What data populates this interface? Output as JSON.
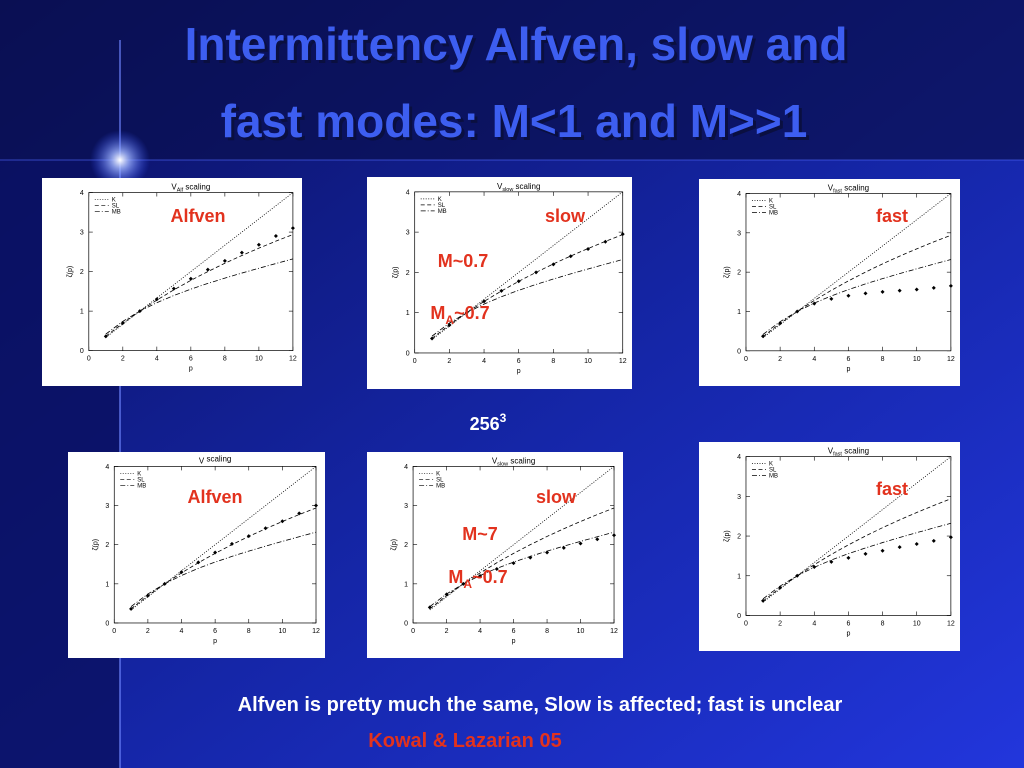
{
  "slide": {
    "title_line1": "Intermittency Alfven, slow and",
    "title_line2": "fast modes: M<1 and M>>1",
    "resolution": {
      "text": "256",
      "sup": "3"
    },
    "summary": "Alfven is pretty much the same, Slow is affected; fast is unclear",
    "citation": "Kowal & Lazarian 05"
  },
  "chart_data": [
    {
      "type": "line",
      "title": {
        "text": "V",
        "sub": "Alf",
        "rest": " scaling"
      },
      "xlabel": "p",
      "ylabel": "ζ(p)",
      "x": [
        1,
        2,
        3,
        4,
        5,
        6,
        7,
        8,
        9,
        10,
        11,
        12
      ],
      "xlim": [
        0,
        12
      ],
      "ylim": [
        0,
        4
      ],
      "xticks": [
        0,
        2,
        4,
        6,
        8,
        10,
        12
      ],
      "yticks": [
        0,
        1,
        2,
        3,
        4
      ],
      "series": [
        {
          "name": "K",
          "color": "#000000",
          "dash": "dotted",
          "values": [
            0.333,
            0.667,
            1,
            1.333,
            1.667,
            2,
            2.333,
            2.667,
            3,
            3.333,
            3.667,
            4
          ]
        },
        {
          "name": "SL",
          "color": "#000000",
          "dash": "dashed",
          "values": [
            0.364,
            0.696,
            1,
            1.279,
            1.538,
            1.778,
            2.001,
            2.211,
            2.407,
            2.593,
            2.77,
            2.938
          ]
        },
        {
          "name": "MB",
          "color": "#000000",
          "dash": "dashdot",
          "values": [
            0.418,
            0.741,
            1,
            1.213,
            1.396,
            1.556,
            1.701,
            1.836,
            1.963,
            2.085,
            2.204,
            2.321
          ]
        }
      ],
      "points": {
        "color": "#000000",
        "values": [
          0.36,
          0.7,
          1.0,
          1.3,
          1.57,
          1.82,
          2.05,
          2.27,
          2.48,
          2.68,
          2.9,
          3.1
        ]
      },
      "annotations": [
        "Alfven"
      ]
    },
    {
      "type": "line",
      "title": {
        "text": "V",
        "sub": "slow",
        "rest": " scaling"
      },
      "xlabel": "p",
      "ylabel": "ζ(p)",
      "x": [
        1,
        2,
        3,
        4,
        5,
        6,
        7,
        8,
        9,
        10,
        11,
        12
      ],
      "xlim": [
        0,
        12
      ],
      "ylim": [
        0,
        4
      ],
      "xticks": [
        0,
        2,
        4,
        6,
        8,
        10,
        12
      ],
      "yticks": [
        0,
        1,
        2,
        3,
        4
      ],
      "series": [
        {
          "name": "K",
          "color": "#000000",
          "dash": "dotted",
          "values": [
            0.333,
            0.667,
            1,
            1.333,
            1.667,
            2,
            2.333,
            2.667,
            3,
            3.333,
            3.667,
            4
          ]
        },
        {
          "name": "SL",
          "color": "#000000",
          "dash": "dashed",
          "values": [
            0.364,
            0.696,
            1,
            1.279,
            1.538,
            1.778,
            2.001,
            2.211,
            2.407,
            2.593,
            2.77,
            2.938
          ]
        },
        {
          "name": "MB",
          "color": "#000000",
          "dash": "dashdot",
          "values": [
            0.418,
            0.741,
            1,
            1.213,
            1.396,
            1.556,
            1.701,
            1.836,
            1.963,
            2.085,
            2.204,
            2.321
          ]
        }
      ],
      "points": {
        "color": "#000000",
        "values": [
          0.36,
          0.69,
          1.0,
          1.28,
          1.54,
          1.78,
          2.0,
          2.2,
          2.4,
          2.58,
          2.76,
          2.95
        ]
      },
      "annotations": [
        "slow",
        "M~0.7",
        {
          "text": "M",
          "sub": "A",
          "rest": "~0.7"
        }
      ]
    },
    {
      "type": "line",
      "title": {
        "text": "V",
        "sub": "fast",
        "rest": " scaling"
      },
      "xlabel": "p",
      "ylabel": "ζ(p)",
      "x": [
        1,
        2,
        3,
        4,
        5,
        6,
        7,
        8,
        9,
        10,
        11,
        12
      ],
      "xlim": [
        0,
        12
      ],
      "ylim": [
        0,
        4
      ],
      "xticks": [
        0,
        2,
        4,
        6,
        8,
        10,
        12
      ],
      "yticks": [
        0,
        1,
        2,
        3,
        4
      ],
      "series": [
        {
          "name": "K",
          "color": "#000000",
          "dash": "dotted",
          "values": [
            0.333,
            0.667,
            1,
            1.333,
            1.667,
            2,
            2.333,
            2.667,
            3,
            3.333,
            3.667,
            4
          ]
        },
        {
          "name": "SL",
          "color": "#000000",
          "dash": "dashed",
          "values": [
            0.364,
            0.696,
            1,
            1.279,
            1.538,
            1.778,
            2.001,
            2.211,
            2.407,
            2.593,
            2.77,
            2.938
          ]
        },
        {
          "name": "MB",
          "color": "#000000",
          "dash": "dashdot",
          "values": [
            0.418,
            0.741,
            1,
            1.213,
            1.396,
            1.556,
            1.701,
            1.836,
            1.963,
            2.085,
            2.204,
            2.321
          ]
        }
      ],
      "points": {
        "color": "#000000",
        "values": [
          0.37,
          0.7,
          1.0,
          1.2,
          1.32,
          1.4,
          1.46,
          1.5,
          1.53,
          1.56,
          1.6,
          1.65
        ]
      },
      "annotations": [
        "fast"
      ]
    },
    {
      "type": "line",
      "title": {
        "text": "V",
        "sub": "",
        "rest": " scaling"
      },
      "xlabel": "p",
      "ylabel": "ζ(p)",
      "x": [
        1,
        2,
        3,
        4,
        5,
        6,
        7,
        8,
        9,
        10,
        11,
        12
      ],
      "xlim": [
        0,
        12
      ],
      "ylim": [
        0,
        4
      ],
      "xticks": [
        0,
        2,
        4,
        6,
        8,
        10,
        12
      ],
      "yticks": [
        0,
        1,
        2,
        3,
        4
      ],
      "series": [
        {
          "name": "K",
          "color": "#000000",
          "dash": "dotted",
          "values": [
            0.333,
            0.667,
            1,
            1.333,
            1.667,
            2,
            2.333,
            2.667,
            3,
            3.333,
            3.667,
            4
          ]
        },
        {
          "name": "SL",
          "color": "#000000",
          "dash": "dashed",
          "values": [
            0.364,
            0.696,
            1,
            1.279,
            1.538,
            1.778,
            2.001,
            2.211,
            2.407,
            2.593,
            2.77,
            2.938
          ]
        },
        {
          "name": "MB",
          "color": "#000000",
          "dash": "dashdot",
          "values": [
            0.418,
            0.741,
            1,
            1.213,
            1.396,
            1.556,
            1.701,
            1.836,
            1.963,
            2.085,
            2.204,
            2.321
          ]
        }
      ],
      "points": {
        "color": "#000000",
        "values": [
          0.36,
          0.7,
          1.0,
          1.3,
          1.55,
          1.8,
          2.02,
          2.22,
          2.42,
          2.6,
          2.8,
          3.0
        ]
      },
      "annotations": [
        "Alfven"
      ]
    },
    {
      "type": "line",
      "title": {
        "text": "V",
        "sub": "slow",
        "rest": " scaling"
      },
      "xlabel": "p",
      "ylabel": "ζ(p)",
      "x": [
        1,
        2,
        3,
        4,
        5,
        6,
        7,
        8,
        9,
        10,
        11,
        12
      ],
      "xlim": [
        0,
        12
      ],
      "ylim": [
        0,
        4
      ],
      "xticks": [
        0,
        2,
        4,
        6,
        8,
        10,
        12
      ],
      "yticks": [
        0,
        1,
        2,
        3,
        4
      ],
      "series": [
        {
          "name": "K",
          "color": "#000000",
          "dash": "dotted",
          "values": [
            0.333,
            0.667,
            1,
            1.333,
            1.667,
            2,
            2.333,
            2.667,
            3,
            3.333,
            3.667,
            4
          ]
        },
        {
          "name": "SL",
          "color": "#000000",
          "dash": "dashed",
          "values": [
            0.364,
            0.696,
            1,
            1.279,
            1.538,
            1.778,
            2.001,
            2.211,
            2.407,
            2.593,
            2.77,
            2.938
          ]
        },
        {
          "name": "MB",
          "color": "#000000",
          "dash": "dashdot",
          "values": [
            0.418,
            0.741,
            1,
            1.213,
            1.396,
            1.556,
            1.701,
            1.836,
            1.963,
            2.085,
            2.204,
            2.321
          ]
        }
      ],
      "points": {
        "color": "#000000",
        "values": [
          0.4,
          0.73,
          1.0,
          1.2,
          1.38,
          1.53,
          1.67,
          1.8,
          1.92,
          2.03,
          2.14,
          2.24
        ]
      },
      "annotations": [
        "slow",
        "M~7",
        {
          "text": "M",
          "sub": "A",
          "rest": "~0.7"
        }
      ]
    },
    {
      "type": "line",
      "title": {
        "text": "V",
        "sub": "fast",
        "rest": " scaling"
      },
      "xlabel": "p",
      "ylabel": "ζ(p)",
      "x": [
        1,
        2,
        3,
        4,
        5,
        6,
        7,
        8,
        9,
        10,
        11,
        12
      ],
      "xlim": [
        0,
        12
      ],
      "ylim": [
        0,
        4
      ],
      "xticks": [
        0,
        2,
        4,
        6,
        8,
        10,
        12
      ],
      "yticks": [
        0,
        1,
        2,
        3,
        4
      ],
      "series": [
        {
          "name": "K",
          "color": "#000000",
          "dash": "dotted",
          "values": [
            0.333,
            0.667,
            1,
            1.333,
            1.667,
            2,
            2.333,
            2.667,
            3,
            3.333,
            3.667,
            4
          ]
        },
        {
          "name": "SL",
          "color": "#000000",
          "dash": "dashed",
          "values": [
            0.364,
            0.696,
            1,
            1.279,
            1.538,
            1.778,
            2.001,
            2.211,
            2.407,
            2.593,
            2.77,
            2.938
          ]
        },
        {
          "name": "MB",
          "color": "#000000",
          "dash": "dashdot",
          "values": [
            0.418,
            0.741,
            1,
            1.213,
            1.396,
            1.556,
            1.701,
            1.836,
            1.963,
            2.085,
            2.204,
            2.321
          ]
        }
      ],
      "points": {
        "color": "#000000",
        "values": [
          0.37,
          0.7,
          1.0,
          1.22,
          1.35,
          1.45,
          1.55,
          1.63,
          1.72,
          1.8,
          1.88,
          1.97
        ]
      },
      "annotations": [
        "fast"
      ]
    }
  ]
}
